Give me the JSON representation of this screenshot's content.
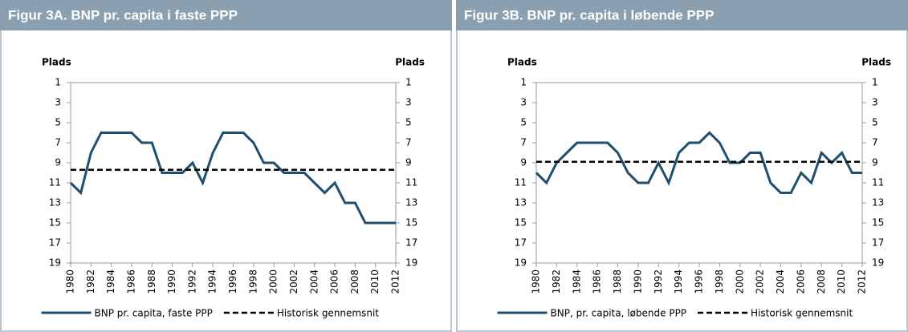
{
  "chart_data": [
    {
      "type": "line",
      "title": "Figur 3A. BNP pr. capita i faste PPP",
      "y_label": "Plads",
      "y2_label": "Plads",
      "x": [
        1980,
        1981,
        1982,
        1983,
        1984,
        1985,
        1986,
        1987,
        1988,
        1989,
        1990,
        1991,
        1992,
        1993,
        1994,
        1995,
        1996,
        1997,
        1998,
        1999,
        2000,
        2001,
        2002,
        2003,
        2004,
        2005,
        2006,
        2007,
        2008,
        2009,
        2010,
        2011,
        2012
      ],
      "xlim": [
        1980,
        2012
      ],
      "xticks": [
        1980,
        1982,
        1984,
        1986,
        1988,
        1990,
        1992,
        1994,
        1996,
        1998,
        2000,
        2002,
        2004,
        2006,
        2008,
        2010,
        2012
      ],
      "ylim": [
        19,
        1
      ],
      "yticks": [
        1,
        3,
        5,
        7,
        9,
        11,
        13,
        15,
        17,
        19
      ],
      "y2lim": [
        19,
        1
      ],
      "y2ticks": [
        1,
        3,
        5,
        7,
        9,
        11,
        13,
        15,
        17,
        19
      ],
      "series": [
        {
          "name": "BNP pr. capita, faste PPP",
          "color": "#1f4e6e",
          "values": [
            11,
            12,
            8,
            6,
            6,
            6,
            6,
            7,
            7,
            10,
            10,
            10,
            9,
            11,
            8,
            6,
            6,
            6,
            7,
            9,
            9,
            10,
            10,
            10,
            11,
            12,
            11,
            13,
            13,
            15,
            15,
            15,
            15
          ]
        },
        {
          "name": "Historisk gennemsnit",
          "color": "#000000",
          "dashed": true,
          "values": [
            9.7,
            9.7,
            9.7,
            9.7,
            9.7,
            9.7,
            9.7,
            9.7,
            9.7,
            9.7,
            9.7,
            9.7,
            9.7,
            9.7,
            9.7,
            9.7,
            9.7,
            9.7,
            9.7,
            9.7,
            9.7,
            9.7,
            9.7,
            9.7,
            9.7,
            9.7,
            9.7,
            9.7,
            9.7,
            9.7,
            9.7,
            9.7,
            9.7
          ]
        }
      ]
    },
    {
      "type": "line",
      "title": "Figur 3B. BNP pr. capita i løbende PPP",
      "y_label": "Plads",
      "y2_label": "Plads",
      "x": [
        1980,
        1981,
        1982,
        1983,
        1984,
        1985,
        1986,
        1987,
        1988,
        1989,
        1990,
        1991,
        1992,
        1993,
        1994,
        1995,
        1996,
        1997,
        1998,
        1999,
        2000,
        2001,
        2002,
        2003,
        2004,
        2005,
        2006,
        2007,
        2008,
        2009,
        2010,
        2011,
        2012
      ],
      "xlim": [
        1980,
        2012
      ],
      "xticks": [
        1980,
        1982,
        1984,
        1986,
        1988,
        1990,
        1992,
        1994,
        1996,
        1998,
        2000,
        2002,
        2004,
        2006,
        2008,
        2010,
        2012
      ],
      "ylim": [
        19,
        1
      ],
      "yticks": [
        1,
        3,
        5,
        7,
        9,
        11,
        13,
        15,
        17,
        19
      ],
      "y2lim": [
        19,
        1
      ],
      "y2ticks": [
        1,
        3,
        5,
        7,
        9,
        11,
        13,
        15,
        17,
        19
      ],
      "series": [
        {
          "name": "BNP, pr. capita, løbende PPP",
          "color": "#1f4e6e",
          "values": [
            10,
            11,
            9,
            8,
            7,
            7,
            7,
            7,
            8,
            10,
            11,
            11,
            9,
            11,
            8,
            7,
            7,
            6,
            7,
            9,
            9,
            8,
            8,
            11,
            12,
            12,
            10,
            11,
            8,
            9,
            8,
            10,
            10
          ]
        },
        {
          "name": "Historisk gennemsnit",
          "color": "#000000",
          "dashed": true,
          "values": [
            8.9,
            8.9,
            8.9,
            8.9,
            8.9,
            8.9,
            8.9,
            8.9,
            8.9,
            8.9,
            8.9,
            8.9,
            8.9,
            8.9,
            8.9,
            8.9,
            8.9,
            8.9,
            8.9,
            8.9,
            8.9,
            8.9,
            8.9,
            8.9,
            8.9,
            8.9,
            8.9,
            8.9,
            8.9,
            8.9,
            8.9,
            8.9,
            8.9
          ]
        }
      ]
    }
  ]
}
